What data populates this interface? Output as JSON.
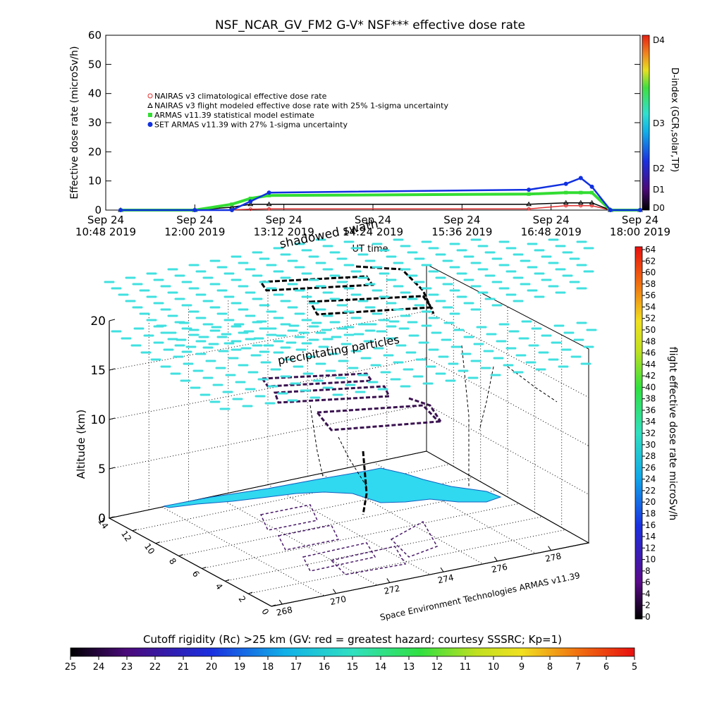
{
  "chart_data": [
    {
      "type": "line",
      "title": "NSF_NCAR_GV_FM2 G-V* NSF*** effective dose rate",
      "ylabel": "Effective dose rate (microSv/h)",
      "xlabel": "UT time",
      "ylim": [
        0,
        60
      ],
      "y_ticks": [
        "0",
        "10",
        "20",
        "30",
        "40",
        "50",
        "60"
      ],
      "x_ticks": [
        {
          "l1": "Sep 24",
          "l2": "10:48 2019"
        },
        {
          "l1": "Sep 24",
          "l2": "12:00 2019"
        },
        {
          "l1": "Sep 24",
          "l2": "13:12 2019"
        },
        {
          "l1": "Sep 24",
          "l2": "14:24 2019"
        },
        {
          "l1": "Sep 24",
          "l2": "15:36 2019"
        },
        {
          "l1": "Sep 24",
          "l2": "16:48 2019"
        },
        {
          "l1": "Sep 24",
          "l2": "18:00 2019"
        }
      ],
      "x_hours": [
        11.0,
        12.0,
        12.5,
        12.75,
        13.0,
        16.5,
        17.0,
        17.2,
        17.35,
        17.6,
        18.0
      ],
      "legend_position": "top-left",
      "series": [
        {
          "name": "NAIRAS v3 climatological effective dose rate",
          "color": "#e03030",
          "values": [
            0,
            0,
            0.1,
            0.3,
            0.4,
            0.4,
            1.5,
            1.5,
            1.5,
            0,
            0
          ]
        },
        {
          "name": "NAIRAS v3 flight modeled effective dose rate with 25% 1-sigma uncertainty",
          "color": "#000000",
          "values": [
            0,
            0,
            1,
            2,
            2,
            2,
            2.5,
            2.5,
            2.5,
            0,
            0
          ]
        },
        {
          "name": "ARMAS v11.39 statistical model estimate",
          "color": "#33dd33",
          "values": [
            0,
            0,
            2,
            4,
            5,
            5.5,
            6,
            6,
            6,
            0,
            0
          ]
        },
        {
          "name": "SET ARMAS v11.39 with 27% 1-sigma uncertainty",
          "color": "#1030e0",
          "values": [
            0,
            0,
            0,
            3,
            6,
            7,
            9,
            11,
            8,
            0,
            0
          ]
        }
      ],
      "right_axis": {
        "label": "D-index (GCR,solar,TP)",
        "ticks": [
          "D0",
          "D1",
          "D2",
          "D3",
          "D4"
        ]
      }
    },
    {
      "type": "scatter",
      "zlabel": "Altitude (km)",
      "z_ticks": [
        "0",
        "5",
        "10",
        "15",
        "20"
      ],
      "y_ticks": [
        "0",
        "2",
        "4",
        "6",
        "8",
        "10",
        "12",
        "14"
      ],
      "x_ticks": [
        "268",
        "270",
        "272",
        "274",
        "276",
        "278"
      ],
      "annotations": [
        "shadowed swath",
        "precipitating particles"
      ],
      "credit": "Space Environment Technologies ARMAS v11.39"
    }
  ],
  "dose_colorbar": {
    "label": "flight effective dose rate microSv/h",
    "ticks": [
      "0",
      "2",
      "4",
      "6",
      "8",
      "10",
      "12",
      "14",
      "16",
      "18",
      "20",
      "22",
      "24",
      "26",
      "28",
      "30",
      "32",
      "34",
      "36",
      "38",
      "40",
      "42",
      "44",
      "46",
      "48",
      "50",
      "52",
      "54",
      "56",
      "58",
      "60",
      "62",
      "64"
    ]
  },
  "rigidity_colorbar": {
    "title": "Cutoff rigidity (Rc) >25 km (GV: red = greatest hazard; courtesy SSSRC; Kp=1)",
    "ticks": [
      "25",
      "24",
      "23",
      "22",
      "21",
      "20",
      "19",
      "18",
      "17",
      "16",
      "15",
      "14",
      "13",
      "12",
      "11",
      "10",
      "9",
      "8",
      "7",
      "6",
      "5"
    ]
  },
  "colors": {
    "cyan_cloud": "#40e0e0",
    "swath": "#30d8f0",
    "flight_track": "#000000",
    "track_purple": "#4a1a6a"
  }
}
